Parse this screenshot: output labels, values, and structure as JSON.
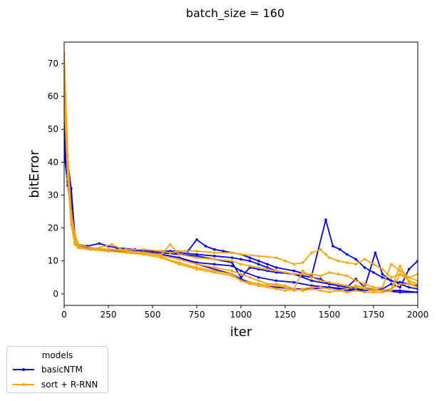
{
  "chart_data": {
    "type": "line",
    "title": "batch_size = 160",
    "xlabel": "iter",
    "ylabel": "bitError",
    "xlim": [
      0,
      2000
    ],
    "ylim": [
      -3.5,
      76.5
    ],
    "xticks": [
      0,
      250,
      500,
      750,
      1000,
      1250,
      1500,
      1750,
      2000
    ],
    "yticks": [
      0,
      10,
      20,
      30,
      40,
      50,
      60,
      70
    ],
    "grid": false,
    "legend": {
      "title": "models",
      "placement": "below-left, outside axes",
      "entries": [
        {
          "name": "basicNTM",
          "color": "#0000ff"
        },
        {
          "name": "sort + R-RNN",
          "color": "#ffa500"
        }
      ]
    },
    "series": [
      {
        "name": "basicNTM",
        "color": "#0000ff",
        "x": [
          0,
          20,
          40,
          60,
          80,
          130,
          200,
          250,
          300,
          400,
          500,
          600,
          700,
          750,
          800,
          850,
          900,
          950,
          1000,
          1050,
          1100,
          1150,
          1200,
          1300,
          1400,
          1480,
          1520,
          1560,
          1600,
          1650,
          1700,
          1750,
          1800,
          1850,
          1900,
          1950,
          2000
        ],
        "y": [
          55,
          40,
          32,
          18,
          15,
          14.5,
          15.3,
          14.5,
          14,
          13.5,
          13,
          13,
          13,
          16.5,
          14.5,
          13.5,
          13,
          12.5,
          12,
          11,
          10,
          9,
          8,
          7,
          5.5,
          22.5,
          14.5,
          13.5,
          12,
          10.5,
          8,
          6.5,
          5,
          4,
          3.5,
          3,
          2.5
        ]
      },
      {
        "name": "basicNTM",
        "color": "#0000ff",
        "x": [
          0,
          20,
          40,
          60,
          80,
          150,
          250,
          350,
          450,
          550,
          650,
          750,
          850,
          950,
          1000,
          1050,
          1100,
          1150,
          1200,
          1300,
          1400,
          1500,
          1550,
          1600,
          1650,
          1700,
          1760,
          1800,
          1850,
          1900,
          1950,
          2000
        ],
        "y": [
          50,
          38,
          30,
          18,
          14.5,
          14,
          13.5,
          13.5,
          13,
          13,
          12.5,
          12,
          11.5,
          11,
          10.5,
          10,
          9,
          8,
          7,
          6,
          4,
          3,
          2.5,
          2,
          4.5,
          2,
          12.5,
          6,
          4,
          3,
          2,
          1.5
        ]
      },
      {
        "name": "basicNTM",
        "color": "#0000ff",
        "x": [
          0,
          20,
          40,
          60,
          80,
          150,
          250,
          350,
          450,
          550,
          650,
          750,
          850,
          950,
          1000,
          1100,
          1200,
          1300,
          1400,
          1500,
          1600,
          1700,
          1800,
          1850,
          1900,
          1950,
          2000
        ],
        "y": [
          48,
          36,
          28,
          17,
          14.5,
          13.5,
          13.5,
          13,
          12.5,
          12,
          11,
          9.5,
          9,
          8.5,
          7,
          5,
          4,
          3.5,
          2.5,
          2,
          1.5,
          1,
          1.5,
          3,
          2,
          7.5,
          10
        ]
      },
      {
        "name": "basicNTM",
        "color": "#0000ff",
        "x": [
          0,
          20,
          40,
          60,
          80,
          150,
          250,
          350,
          450,
          550,
          650,
          750,
          850,
          950,
          1000,
          1050,
          1100,
          1150,
          1200,
          1300,
          1400,
          1500,
          1600,
          1700,
          1800,
          1900,
          2000
        ],
        "y": [
          45,
          34,
          26,
          16,
          14,
          13.5,
          13,
          13,
          12.5,
          12,
          11,
          9,
          7.5,
          6,
          4.5,
          3.5,
          3,
          2.5,
          2,
          1.5,
          1.5,
          2,
          1,
          1.5,
          1,
          1,
          0.5
        ]
      },
      {
        "name": "basicNTM",
        "color": "#0000ff",
        "x": [
          0,
          20,
          40,
          60,
          80,
          150,
          250,
          350,
          450,
          550,
          650,
          750,
          850,
          950,
          1000,
          1050,
          1100,
          1150,
          1200,
          1300,
          1350,
          1400,
          1450,
          1500,
          1550,
          1600,
          1700,
          1800,
          1900,
          2000
        ],
        "y": [
          43,
          33,
          25,
          16,
          14,
          13.5,
          13,
          13,
          12.5,
          12.5,
          12,
          11.5,
          10.5,
          9.5,
          5,
          8,
          7.5,
          7,
          6.5,
          6,
          5.5,
          5,
          4.5,
          3,
          2.5,
          2,
          1.5,
          1,
          0.5,
          0.5
        ]
      },
      {
        "name": "sort + R-RNN",
        "color": "#ffa500",
        "x": [
          0,
          20,
          40,
          60,
          80,
          150,
          250,
          350,
          450,
          550,
          600,
          650,
          750,
          850,
          950,
          1000,
          1100,
          1200,
          1250,
          1300,
          1350,
          1400,
          1450,
          1480,
          1500,
          1550,
          1600,
          1650,
          1700,
          1750,
          1800,
          1850,
          1900,
          1950,
          2000
        ],
        "y": [
          73,
          42,
          25,
          18,
          15,
          14,
          13.5,
          13.5,
          13.5,
          13,
          12.5,
          13,
          13,
          12.5,
          12.5,
          12,
          11.5,
          11,
          10,
          9,
          9.5,
          12.5,
          13.5,
          12,
          11,
          10,
          9.5,
          9,
          10.5,
          9,
          7.5,
          5,
          6,
          5,
          4
        ]
      },
      {
        "name": "sort + R-RNN",
        "color": "#ffa500",
        "x": [
          0,
          20,
          40,
          60,
          80,
          150,
          250,
          350,
          450,
          550,
          600,
          650,
          750,
          850,
          950,
          1000,
          1050,
          1100,
          1150,
          1200,
          1250,
          1300,
          1350,
          1400,
          1450,
          1500,
          1550,
          1600,
          1650,
          1700,
          1750,
          1800,
          1850,
          1900,
          1950,
          2000
        ],
        "y": [
          68,
          40,
          24,
          17,
          14.5,
          13.5,
          13.5,
          13,
          12.5,
          12,
          15,
          12,
          11,
          10.5,
          10,
          9,
          8.5,
          8,
          7.5,
          7,
          6.5,
          6,
          6,
          6,
          5.5,
          6.5,
          6,
          5.5,
          4,
          3,
          2,
          2,
          9,
          7,
          5,
          6
        ]
      },
      {
        "name": "sort + R-RNN",
        "color": "#ffa500",
        "x": [
          0,
          20,
          40,
          60,
          80,
          150,
          270,
          350,
          450,
          550,
          650,
          750,
          850,
          950,
          1000,
          1050,
          1100,
          1150,
          1200,
          1250,
          1300,
          1350,
          1400,
          1450,
          1500,
          1550,
          1600,
          1650,
          1700,
          1750,
          1800,
          1850,
          1900,
          1950,
          2000
        ],
        "y": [
          65,
          38,
          23,
          16,
          14,
          13.5,
          15,
          13,
          12.5,
          11.5,
          10.5,
          9,
          8,
          7,
          6,
          5,
          4,
          3,
          3,
          2.5,
          1.5,
          7,
          5,
          4,
          3.5,
          3,
          2.5,
          2,
          1.5,
          1,
          1,
          1.5,
          8.5,
          3.5,
          2
        ]
      },
      {
        "name": "sort + R-RNN",
        "color": "#ffa500",
        "x": [
          0,
          20,
          40,
          60,
          80,
          150,
          250,
          350,
          450,
          550,
          650,
          750,
          850,
          950,
          1000,
          1050,
          1100,
          1150,
          1200,
          1250,
          1300,
          1350,
          1400,
          1450,
          1500,
          1550,
          1600,
          1650,
          1700,
          1750,
          1800,
          1850,
          1900,
          1950,
          2000
        ],
        "y": [
          62,
          36,
          22,
          15.5,
          14,
          13.5,
          13.5,
          13,
          12,
          11,
          9.5,
          8,
          7,
          6,
          4,
          3.5,
          3,
          2.5,
          2.5,
          2,
          1,
          1.5,
          2,
          2,
          1.5,
          1,
          1.5,
          2.5,
          2,
          1.5,
          1,
          1.5,
          3,
          3,
          2
        ]
      },
      {
        "name": "sort + R-RNN",
        "color": "#ffa500",
        "x": [
          0,
          20,
          40,
          60,
          80,
          150,
          250,
          350,
          450,
          550,
          650,
          750,
          850,
          950,
          1000,
          1050,
          1100,
          1150,
          1200,
          1250,
          1300,
          1350,
          1400,
          1450,
          1500,
          1550,
          1600,
          1650,
          1700,
          1750,
          1800,
          1850,
          1900,
          1950,
          2000
        ],
        "y": [
          60,
          35,
          21,
          15,
          14,
          13.5,
          13,
          12.5,
          12,
          11,
          9,
          7.5,
          6.5,
          5.5,
          4,
          3,
          2.5,
          2,
          1.5,
          1,
          1.5,
          1,
          1.5,
          1,
          0.5,
          1,
          0.5,
          1,
          0.5,
          0.5,
          0.5,
          1,
          6,
          4,
          3
        ]
      }
    ]
  }
}
